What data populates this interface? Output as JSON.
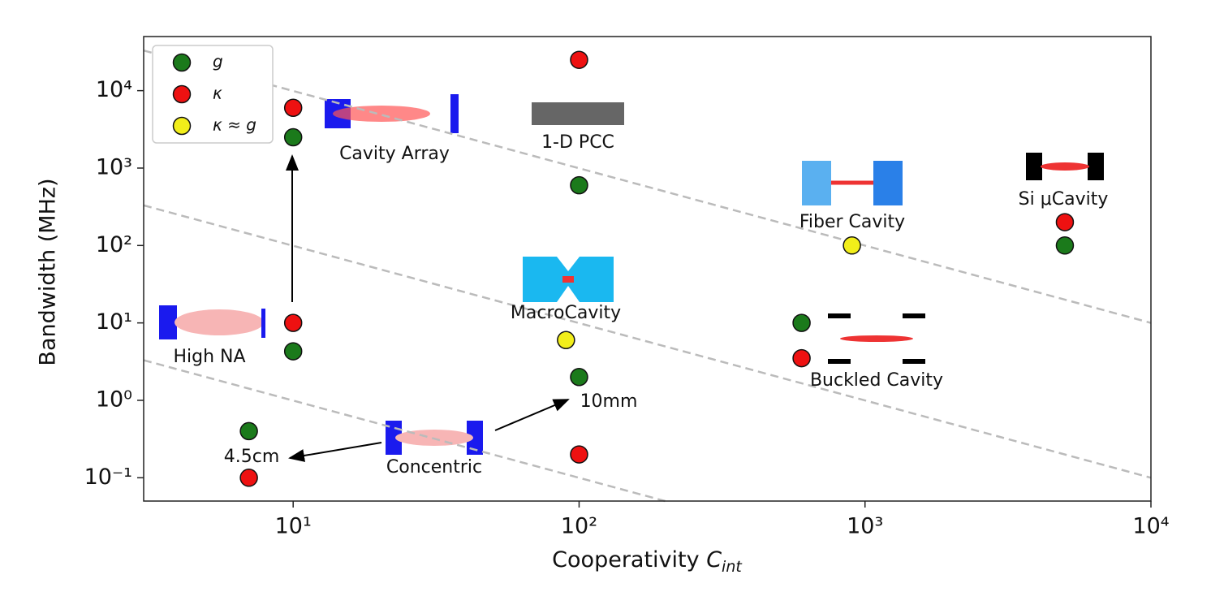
{
  "chart_data": {
    "type": "scatter",
    "xlabel": "Cooperativity ",
    "xlabel_var": "C",
    "xlabel_sub": "int",
    "ylabel": "Bandwidth (MHz)",
    "log_x": true,
    "log_y": true,
    "xlim": [
      3,
      10000
    ],
    "ylim": [
      0.05,
      50000
    ],
    "xticks": [
      {
        "value": 10,
        "label": "10¹"
      },
      {
        "value": 100,
        "label": "10²"
      },
      {
        "value": 1000,
        "label": "10³"
      },
      {
        "value": 10000,
        "label": "10⁴"
      }
    ],
    "yticks": [
      {
        "value": 0.1,
        "label": "10⁻¹"
      },
      {
        "value": 1,
        "label": "10⁰"
      },
      {
        "value": 10,
        "label": "10¹"
      },
      {
        "value": 100,
        "label": "10²"
      },
      {
        "value": 1000,
        "label": "10³"
      },
      {
        "value": 10000,
        "label": "10⁴"
      }
    ],
    "legend": "upper left",
    "series": [
      {
        "name": "g",
        "color": "#1b7a1b",
        "x": [
          10,
          100,
          600,
          5000,
          10,
          100,
          7
        ],
        "values": [
          2500,
          600,
          10,
          100,
          4.3,
          2,
          0.4
        ]
      },
      {
        "name": "κ",
        "color": "#ee1111",
        "x": [
          100,
          10,
          5000,
          10,
          600,
          100,
          7
        ],
        "values": [
          25000,
          6000,
          200,
          10,
          3.5,
          0.2,
          0.1
        ]
      },
      {
        "name": "κ ≈ g",
        "color": "#f2ee1a",
        "x": [
          900,
          90
        ],
        "values": [
          100,
          6
        ]
      }
    ],
    "guide_lines": [
      {
        "x": [
          3,
          10000
        ],
        "values": [
          33000,
          10
        ]
      },
      {
        "x": [
          3,
          10000
        ],
        "values": [
          330,
          0.1
        ]
      },
      {
        "x": [
          3,
          200
        ],
        "values": [
          3.3,
          0.05
        ]
      }
    ],
    "annotations": [
      "Cavity Array",
      "1-D PCC",
      "Fiber Cavity",
      "Si μCavity",
      "MacroCavity",
      "High NA",
      "Buckled Cavity",
      "Concentric",
      "10mm",
      "4.5cm"
    ]
  }
}
